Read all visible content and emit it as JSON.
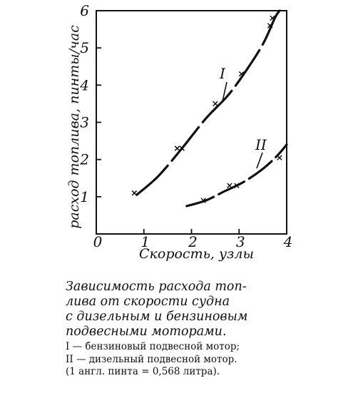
{
  "chart_data": {
    "type": "line",
    "xlabel": "Скорость, узлы",
    "ylabel": "расход топлива, пинты/час",
    "xlim": [
      0,
      4
    ],
    "ylim": [
      0,
      6
    ],
    "x_ticks": [
      "0",
      "1",
      "2",
      "3",
      "4"
    ],
    "y_ticks": [
      "1",
      "2",
      "3",
      "4",
      "5",
      "6"
    ],
    "grid": false,
    "series": [
      {
        "name": "I",
        "points": [
          [
            0.8,
            1.1
          ],
          [
            1.7,
            2.3
          ],
          [
            1.8,
            2.3
          ],
          [
            2.5,
            3.5
          ],
          [
            3.05,
            4.3
          ],
          [
            3.65,
            5.6
          ],
          [
            3.7,
            5.8
          ]
        ],
        "curve": [
          [
            0.85,
            1.05
          ],
          [
            1.3,
            1.55
          ],
          [
            1.8,
            2.3
          ],
          [
            2.3,
            3.1
          ],
          [
            2.75,
            3.7
          ],
          [
            3.1,
            4.3
          ],
          [
            3.5,
            5.1
          ],
          [
            3.75,
            5.8
          ],
          [
            3.85,
            6.0
          ]
        ]
      },
      {
        "name": "II",
        "points": [
          [
            2.25,
            0.9
          ],
          [
            2.8,
            1.3
          ],
          [
            2.95,
            1.3
          ],
          [
            3.85,
            2.05
          ]
        ],
        "curve": [
          [
            1.9,
            0.75
          ],
          [
            2.3,
            0.9
          ],
          [
            2.7,
            1.15
          ],
          [
            3.1,
            1.4
          ],
          [
            3.5,
            1.75
          ],
          [
            3.8,
            2.1
          ],
          [
            4.0,
            2.4
          ]
        ]
      }
    ]
  },
  "caption": {
    "lines": [
      "Зависимость расхода топ-",
      "лива от скорости судна",
      "с дизельным и бензиновым",
      "подвесными моторами."
    ]
  },
  "legend": {
    "lines": [
      "I — бензиновый подвесной мотор;",
      "II — дизельный подвесной мотор.",
      "(1 англ. пинта = 0,568 литра)."
    ]
  }
}
